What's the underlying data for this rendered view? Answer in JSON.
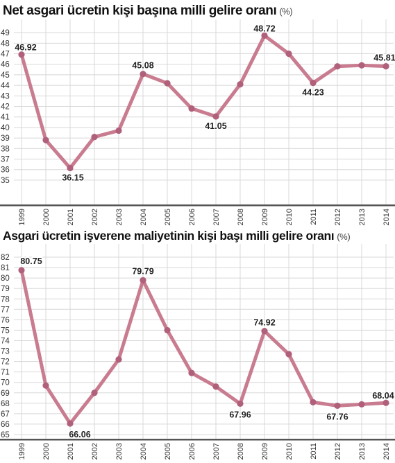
{
  "chart_data": [
    {
      "type": "line",
      "title": "Net asgari ücretin kişi başına milli gelire oranı",
      "unit": "(%)",
      "categories": [
        "1999",
        "2000",
        "2001",
        "2002",
        "2003",
        "2004",
        "2005",
        "2006",
        "2007",
        "2008",
        "2009",
        "2010",
        "2011",
        "2012",
        "2013",
        "2014"
      ],
      "series": [
        {
          "values": [
            46.92,
            38.8,
            36.15,
            39.1,
            39.7,
            45.08,
            44.2,
            41.8,
            41.05,
            44.1,
            48.72,
            47.0,
            44.23,
            45.8,
            45.9,
            45.81
          ]
        }
      ],
      "data_labels": [
        "46.92",
        "",
        "36.15",
        "",
        "",
        "45.08",
        "",
        "",
        "41.05",
        "",
        "48.72",
        "",
        "44.23",
        "",
        "",
        "45.81"
      ],
      "yticks": [
        "35",
        "36",
        "37",
        "38",
        "39",
        "40",
        "41",
        "42",
        "43",
        "44",
        "45",
        "46",
        "47",
        "48",
        "49"
      ],
      "ylim": [
        34.6,
        49.6
      ],
      "grid": true,
      "line_color": "#c97b8f",
      "marker_color": "#b0607a",
      "axis_color": "#555555"
    },
    {
      "type": "line",
      "title": "Asgari ücretin işverene maliyetinin kişi başı milli gelire oranı",
      "unit": "(%)",
      "categories": [
        "1999",
        "2000",
        "2001",
        "2002",
        "2003",
        "2004",
        "2005",
        "2006",
        "2007",
        "2008",
        "2009",
        "2010",
        "2011",
        "2012",
        "2013",
        "2014"
      ],
      "series": [
        {
          "values": [
            80.75,
            69.7,
            66.06,
            69.0,
            72.2,
            79.79,
            75.0,
            70.9,
            69.6,
            67.96,
            74.92,
            72.7,
            68.1,
            67.76,
            67.9,
            68.04
          ]
        }
      ],
      "data_labels": [
        "80.75",
        "",
        "66.06",
        "",
        "",
        "79.79",
        "",
        "",
        "",
        "67.96",
        "74.92",
        "",
        "",
        "67.76",
        "",
        "68.04"
      ],
      "yticks": [
        "65",
        "66",
        "67",
        "68",
        "69",
        "70",
        "71",
        "72",
        "73",
        "74",
        "75",
        "76",
        "77",
        "78",
        "79",
        "80",
        "81",
        "82"
      ],
      "ylim": [
        64.6,
        82.6
      ],
      "grid": true,
      "line_color": "#c97b8f",
      "marker_color": "#b0607a",
      "axis_color": "#555555"
    }
  ]
}
